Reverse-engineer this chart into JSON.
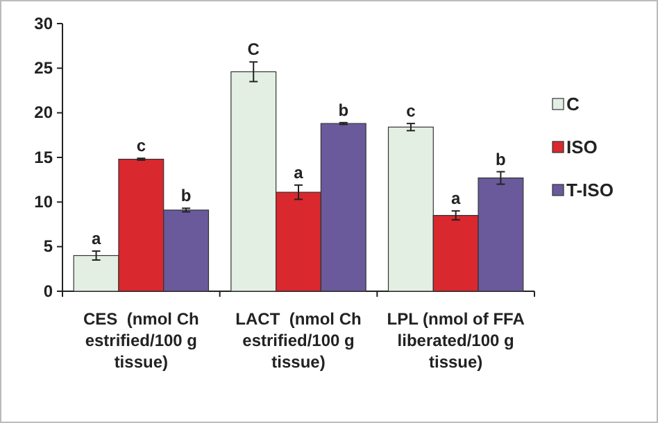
{
  "chart_data": {
    "type": "bar",
    "categories": [
      "CES  (nmol Ch estrified/100 g tissue)",
      "LACT  (nmol Ch estrified/100 g tissue)",
      "LPL (nmol of FFA liberated/100 g tissue)"
    ],
    "series": [
      {
        "name": "C",
        "color": "#e4efe4",
        "values": [
          4.0,
          24.6,
          18.4
        ],
        "errors": [
          0.5,
          1.1,
          0.4
        ],
        "value_labels": [
          "a",
          "C",
          "c"
        ]
      },
      {
        "name": "ISO",
        "color": "#d9282e",
        "values": [
          14.8,
          11.1,
          8.5
        ],
        "errors": [
          0.1,
          0.8,
          0.5
        ],
        "value_labels": [
          "c",
          "a",
          "a"
        ]
      },
      {
        "name": "T-ISO",
        "color": "#6a5a9c",
        "values": [
          9.1,
          18.8,
          12.7
        ],
        "errors": [
          0.2,
          0.1,
          0.7
        ],
        "value_labels": [
          "b",
          "b",
          "b"
        ]
      }
    ],
    "ylim": [
      0,
      30
    ],
    "yticks": [
      0,
      5,
      10,
      15,
      20,
      25,
      30
    ],
    "grid": false,
    "legend": "right"
  }
}
